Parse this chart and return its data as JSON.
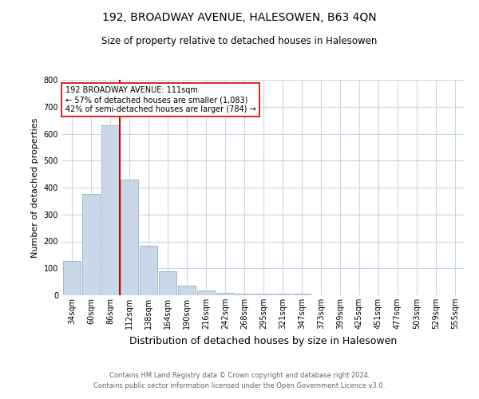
{
  "title": "192, BROADWAY AVENUE, HALESOWEN, B63 4QN",
  "subtitle": "Size of property relative to detached houses in Halesowen",
  "xlabel": "Distribution of detached houses by size in Halesowen",
  "ylabel": "Number of detached properties",
  "footer_line1": "Contains HM Land Registry data © Crown copyright and database right 2024.",
  "footer_line2": "Contains public sector information licensed under the Open Government Licence v3.0.",
  "bar_labels": [
    "34sqm",
    "60sqm",
    "86sqm",
    "112sqm",
    "138sqm",
    "164sqm",
    "190sqm",
    "216sqm",
    "242sqm",
    "268sqm",
    "295sqm",
    "321sqm",
    "347sqm",
    "373sqm",
    "399sqm",
    "425sqm",
    "451sqm",
    "477sqm",
    "503sqm",
    "529sqm",
    "555sqm"
  ],
  "bar_values": [
    128,
    375,
    630,
    430,
    185,
    88,
    35,
    18,
    10,
    7,
    7,
    7,
    7,
    0,
    0,
    0,
    0,
    0,
    0,
    0,
    0
  ],
  "bar_color": "#c8d8e8",
  "bar_edge_color": "#a0b8cc",
  "grid_color": "#c8d8e8",
  "annotation_line_color": "#cc0000",
  "annotation_box_text": "192 BROADWAY AVENUE: 111sqm\n← 57% of detached houses are smaller (1,083)\n42% of semi-detached houses are larger (784) →",
  "annotation_box_color": "#ffffff",
  "annotation_box_edge_color": "#cc0000",
  "ylim": [
    0,
    800
  ],
  "yticks": [
    0,
    100,
    200,
    300,
    400,
    500,
    600,
    700,
    800
  ],
  "background_color": "#ffffff",
  "title_fontsize": 10,
  "subtitle_fontsize": 8.5,
  "ylabel_fontsize": 8,
  "xlabel_fontsize": 9,
  "tick_fontsize": 7,
  "annot_fontsize": 7,
  "footer_fontsize": 6
}
